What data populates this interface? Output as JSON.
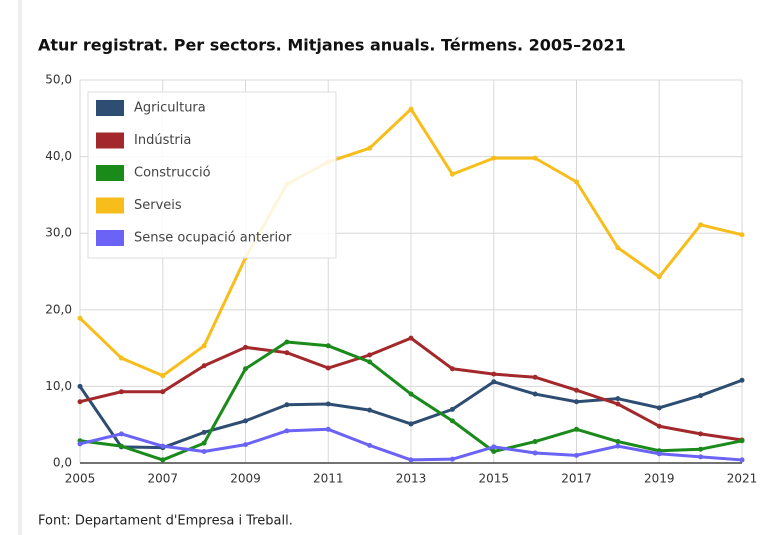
{
  "chart_data": {
    "type": "line",
    "title": "Atur registrat. Per sectors. Mitjanes anuals. Térmens. 2005–2021",
    "source": "Font: Departament d'Empresa i Treball.",
    "x": [
      2005,
      2006,
      2007,
      2008,
      2009,
      2010,
      2011,
      2012,
      2013,
      2014,
      2015,
      2016,
      2017,
      2018,
      2019,
      2020,
      2021
    ],
    "xlim": [
      2005,
      2021
    ],
    "xticks": [
      2005,
      2007,
      2009,
      2011,
      2013,
      2015,
      2017,
      2019,
      2021
    ],
    "ylim": [
      0,
      50
    ],
    "yticks": [
      {
        "value": 0,
        "label": "0,0"
      },
      {
        "value": 10,
        "label": "10,0"
      },
      {
        "value": 20,
        "label": "20,0"
      },
      {
        "value": 30,
        "label": "30,0"
      },
      {
        "value": 40,
        "label": "40,0"
      },
      {
        "value": 50,
        "label": "50,0"
      }
    ],
    "grid": true,
    "legend": "top-left",
    "series": [
      {
        "name": "Agricultura",
        "color": "#2e4d72",
        "values": [
          10.0,
          2.1,
          2.0,
          4.0,
          5.5,
          7.6,
          7.7,
          6.9,
          5.1,
          7.0,
          10.6,
          9.0,
          8.0,
          8.4,
          7.2,
          8.8,
          10.8
        ]
      },
      {
        "name": "Indústria",
        "color": "#a3282b",
        "values": [
          8.0,
          9.3,
          9.3,
          12.7,
          15.1,
          14.4,
          12.4,
          14.1,
          16.3,
          12.3,
          11.6,
          11.2,
          9.5,
          7.7,
          4.8,
          3.8,
          3.0
        ]
      },
      {
        "name": "Construcció",
        "color": "#1a8a1a",
        "values": [
          2.9,
          2.2,
          0.4,
          2.6,
          12.3,
          15.8,
          15.3,
          13.2,
          9.0,
          5.5,
          1.5,
          2.8,
          4.4,
          2.8,
          1.6,
          1.8,
          2.9
        ]
      },
      {
        "name": "Serveis",
        "color": "#f7bd1b",
        "values": [
          18.9,
          13.7,
          11.4,
          15.3,
          26.8,
          36.4,
          39.3,
          41.1,
          46.2,
          37.7,
          39.8,
          39.8,
          36.7,
          28.1,
          24.3,
          31.1,
          29.8
        ]
      },
      {
        "name": "Sense ocupació anterior",
        "color": "#6a63f5",
        "values": [
          2.5,
          3.8,
          2.2,
          1.5,
          2.4,
          4.2,
          4.4,
          2.3,
          0.4,
          0.5,
          2.1,
          1.3,
          1.0,
          2.2,
          1.2,
          0.8,
          0.4
        ]
      }
    ]
  }
}
